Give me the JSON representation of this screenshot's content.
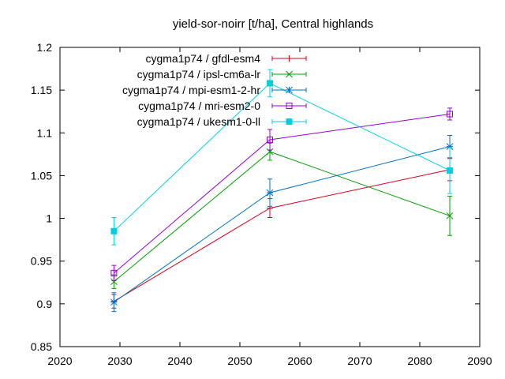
{
  "chart_data": {
    "type": "line",
    "title": "yield-sor-noirr [t/ha], Central highlands",
    "xlabel": "",
    "ylabel": "",
    "xlim": [
      2020,
      2090
    ],
    "ylim": [
      0.85,
      1.2
    ],
    "x_ticks": [
      2020,
      2030,
      2040,
      2050,
      2060,
      2070,
      2080,
      2090
    ],
    "y_ticks": [
      0.85,
      0.9,
      0.95,
      1,
      1.05,
      1.1,
      1.15,
      1.2
    ],
    "x_tick_labels": [
      "2020",
      "2030",
      "2040",
      "2050",
      "2060",
      "2070",
      "2080",
      "2090"
    ],
    "y_tick_labels": [
      "0.85",
      "0.9",
      "0.95",
      "1",
      "1.05",
      "1.1",
      "1.15",
      "1.2"
    ],
    "grid": false,
    "legend_position": "top-right",
    "series": [
      {
        "name": "cygma1p74 / gfdl-esm4",
        "color": "#d6001c",
        "marker": "plus",
        "points": [
          {
            "x": 2029,
            "y": 0.903,
            "err": 0.008
          },
          {
            "x": 2055,
            "y": 1.012,
            "err": 0.011
          },
          {
            "x": 2085,
            "y": 1.057,
            "err": 0.013
          }
        ]
      },
      {
        "name": "cygma1p74 / ipsl-cm6a-lr",
        "color": "#009e00",
        "marker": "cross",
        "points": [
          {
            "x": 2029,
            "y": 0.926,
            "err": 0.008
          },
          {
            "x": 2055,
            "y": 1.078,
            "err": 0.01
          },
          {
            "x": 2085,
            "y": 1.003,
            "err": 0.023
          }
        ]
      },
      {
        "name": "cygma1p74 / mpi-esm1-2-hr",
        "color": "#0072c6",
        "marker": "star",
        "points": [
          {
            "x": 2029,
            "y": 0.902,
            "err": 0.011
          },
          {
            "x": 2055,
            "y": 1.03,
            "err": 0.016
          },
          {
            "x": 2085,
            "y": 1.084,
            "err": 0.013
          }
        ]
      },
      {
        "name": "cygma1p74 / mri-esm2-0",
        "color": "#9400d3",
        "marker": "square-open",
        "points": [
          {
            "x": 2029,
            "y": 0.936,
            "err": 0.009
          },
          {
            "x": 2055,
            "y": 1.092,
            "err": 0.012
          },
          {
            "x": 2085,
            "y": 1.122,
            "err": 0.007
          }
        ]
      },
      {
        "name": "cygma1p74 / ukesm1-0-ll",
        "color": "#00cfe0",
        "marker": "square-filled",
        "points": [
          {
            "x": 2029,
            "y": 0.985,
            "err": 0.016
          },
          {
            "x": 2055,
            "y": 1.158,
            "err": 0.016
          },
          {
            "x": 2085,
            "y": 1.056,
            "err": 0.027
          }
        ]
      }
    ]
  }
}
